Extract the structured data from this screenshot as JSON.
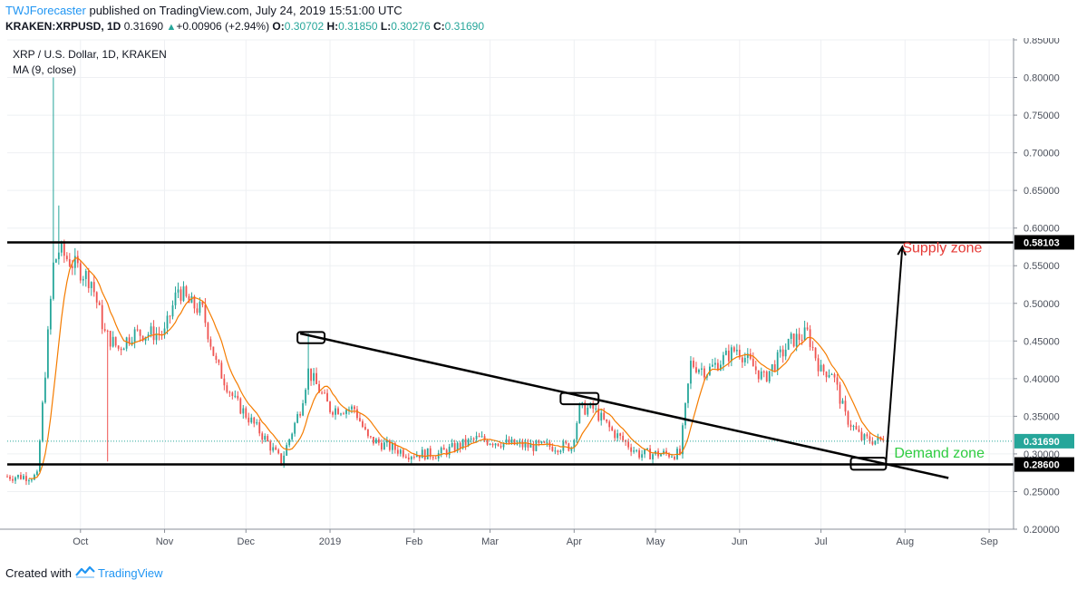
{
  "header": {
    "author": "TWJForecaster",
    "published_text": "published on TradingView.com, July 24, 2019 15:51:00 UTC",
    "symbol": "KRAKEN:XRPUSD, 1D",
    "last": "0.31690",
    "change": "+0.00906 (+2.94%)",
    "o_label": "O:",
    "o": "0.30702",
    "h_label": "H:",
    "h": "0.31850",
    "l_label": "L:",
    "l": "0.30276",
    "c_label": "C:",
    "c": "0.31690"
  },
  "legend": {
    "title": "XRP / U.S. Dollar, 1D, KRAKEN",
    "indicator": "MA (9, close)"
  },
  "footer": {
    "created_with": "Created with",
    "brand": "TradingView"
  },
  "colors": {
    "up": "#26a69a",
    "down": "#ef5350",
    "ma": "#f57c00",
    "supply": "#e53935",
    "demand": "#2ecc40",
    "level_line": "#000000",
    "current_price": "#26a69a"
  },
  "chart_data": {
    "type": "candlestick",
    "y_axis": {
      "min": 0.2,
      "max": 0.85,
      "ticks": [
        "0.85000",
        "0.80000",
        "0.75000",
        "0.70000",
        "0.65000",
        "0.60000",
        "0.55000",
        "0.50000",
        "0.45000",
        "0.40000",
        "0.35000",
        "0.30000",
        "0.25000",
        "0.20000"
      ]
    },
    "x_axis": {
      "labels": [
        "Oct",
        "Nov",
        "Dec",
        "2019",
        "Feb",
        "Mar",
        "Apr",
        "May",
        "Jun",
        "Jul",
        "Aug",
        "Sep"
      ],
      "label_dates": [
        "2018-10-01",
        "2018-11-01",
        "2018-12-01",
        "2019-01-01",
        "2019-02-01",
        "2019-03-01",
        "2019-04-01",
        "2019-05-01",
        "2019-06-01",
        "2019-07-01",
        "2019-08-01",
        "2019-09-01"
      ],
      "start_date": "2018-09-04",
      "end_date": "2019-09-10"
    },
    "price_path": [
      [
        "2018-09-04",
        0.27
      ],
      [
        "2018-09-15",
        0.27
      ],
      [
        "2018-09-21",
        0.55
      ],
      [
        "2018-09-23",
        0.57
      ],
      [
        "2018-10-05",
        0.53
      ],
      [
        "2018-10-10",
        0.46
      ],
      [
        "2018-10-15",
        0.44
      ],
      [
        "2018-10-20",
        0.46
      ],
      [
        "2018-11-01",
        0.46
      ],
      [
        "2018-11-06",
        0.52
      ],
      [
        "2018-11-10",
        0.5
      ],
      [
        "2018-11-15",
        0.49
      ],
      [
        "2018-11-20",
        0.42
      ],
      [
        "2018-11-27",
        0.37
      ],
      [
        "2018-12-06",
        0.33
      ],
      [
        "2018-12-14",
        0.29
      ],
      [
        "2018-12-21",
        0.36
      ],
      [
        "2018-12-24",
        0.41
      ],
      [
        "2019-01-01",
        0.36
      ],
      [
        "2019-01-10",
        0.36
      ],
      [
        "2019-01-15",
        0.32
      ],
      [
        "2019-01-30",
        0.3
      ],
      [
        "2019-02-10",
        0.3
      ],
      [
        "2019-02-24",
        0.32
      ],
      [
        "2019-03-15",
        0.31
      ],
      [
        "2019-03-31",
        0.31
      ],
      [
        "2019-04-03",
        0.36
      ],
      [
        "2019-04-08",
        0.36
      ],
      [
        "2019-04-15",
        0.33
      ],
      [
        "2019-04-25",
        0.3
      ],
      [
        "2019-05-10",
        0.3
      ],
      [
        "2019-05-14",
        0.42
      ],
      [
        "2019-05-20",
        0.41
      ],
      [
        "2019-05-31",
        0.44
      ],
      [
        "2019-06-10",
        0.4
      ],
      [
        "2019-06-20",
        0.45
      ],
      [
        "2019-06-26",
        0.46
      ],
      [
        "2019-07-01",
        0.41
      ],
      [
        "2019-07-05",
        0.41
      ],
      [
        "2019-07-10",
        0.35
      ],
      [
        "2019-07-16",
        0.32
      ],
      [
        "2019-07-24",
        0.3169
      ]
    ],
    "spikes": [
      {
        "date": "2018-09-21",
        "high": 0.8
      },
      {
        "date": "2018-09-23",
        "high": 0.63
      },
      {
        "date": "2018-10-11",
        "low": 0.29
      },
      {
        "date": "2018-12-24",
        "high": 0.46
      }
    ],
    "moving_average": {
      "name": "MA (9, close)",
      "period": 9
    },
    "horizontal_lines": [
      {
        "name": "supply",
        "value": 0.58103,
        "label": "0.58103"
      },
      {
        "name": "demand",
        "value": 0.286,
        "label": "0.28600"
      }
    ],
    "current_price": {
      "value": 0.3169,
      "label": "0.31690"
    },
    "trendline": {
      "start": {
        "date": "2018-12-21",
        "value": 0.46
      },
      "end": {
        "date": "2019-08-17",
        "value": 0.268
      }
    },
    "projection_arrow": {
      "start": {
        "date": "2019-07-25",
        "value": 0.29
      },
      "end": {
        "date": "2019-07-31",
        "value": 0.575
      }
    },
    "highlight_boxes": [
      {
        "date_from": "2018-12-20",
        "date_to": "2018-12-30",
        "value_from": 0.447,
        "value_to": 0.462
      },
      {
        "date_from": "2019-03-27",
        "date_to": "2019-04-10",
        "value_from": 0.366,
        "value_to": 0.381
      },
      {
        "date_from": "2019-07-12",
        "date_to": "2019-07-25",
        "value_from": 0.279,
        "value_to": 0.295
      }
    ],
    "annotations": [
      {
        "text": "Supply zone",
        "date": "2019-07-31",
        "value": 0.568,
        "color": "supply"
      },
      {
        "text": "Demand zone",
        "date": "2019-07-28",
        "value": 0.295,
        "color": "demand"
      }
    ]
  }
}
